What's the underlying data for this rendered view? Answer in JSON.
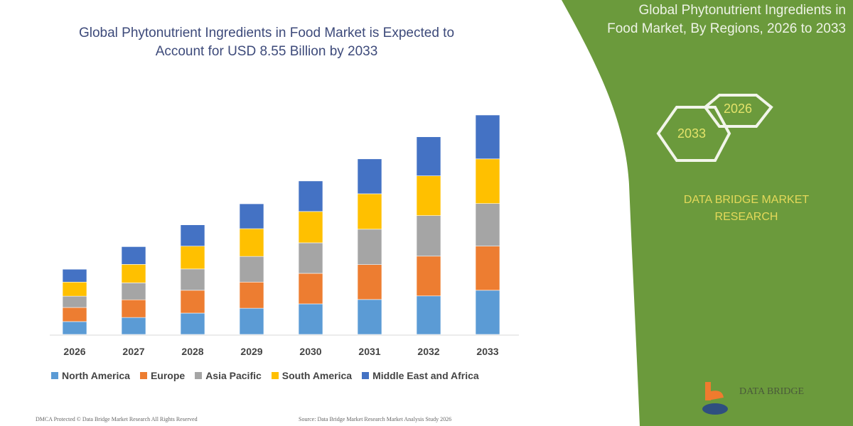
{
  "title": "Global Phytonutrient Ingredients in Food Market is Expected to Account for USD 8.55 Billion by 2033",
  "title_lines": [
    "Global Phytonutrient Ingredients in Food Market is Expected to",
    "Account for USD 8.55 Billion by 2033"
  ],
  "side_panel": {
    "title_lines": [
      "Global Phytonutrient Ingredients in",
      "Food Market, By Regions, 2026 to 2033"
    ],
    "hex_start": "2026",
    "hex_end": "2033",
    "brand_lines": [
      "DATA BRIDGE MARKET",
      "RESEARCH"
    ],
    "color": "#6b9a3c"
  },
  "logo": {
    "text": "DATA BRIDGE"
  },
  "footer": {
    "left": "DMCA Protected © Data Bridge Market Research   All Rights Reserved",
    "right": "Source: Data Bridge Market Research Market Analysis Study 2026"
  },
  "chart_data": {
    "type": "bar",
    "stacked": true,
    "categories": [
      "2026",
      "2027",
      "2028",
      "2029",
      "2030",
      "2031",
      "2032",
      "2033"
    ],
    "series": [
      {
        "name": "North America",
        "color": "#5b9bd5",
        "values": [
          0.5,
          0.66,
          0.83,
          1.02,
          1.19,
          1.36,
          1.5,
          1.72
        ]
      },
      {
        "name": "Europe",
        "color": "#ed7d31",
        "values": [
          0.55,
          0.69,
          0.89,
          1.02,
          1.19,
          1.36,
          1.55,
          1.72
        ]
      },
      {
        "name": "Asia Pacific",
        "color": "#a5a5a5",
        "values": [
          0.44,
          0.66,
          0.83,
          1.0,
          1.19,
          1.38,
          1.58,
          1.66
        ]
      },
      {
        "name": "South America",
        "color": "#ffc000",
        "values": [
          0.55,
          0.72,
          0.89,
          1.08,
          1.22,
          1.38,
          1.55,
          1.74
        ]
      },
      {
        "name": "Middle East and Africa",
        "color": "#4472c4",
        "values": [
          0.5,
          0.69,
          0.83,
          0.97,
          1.19,
          1.36,
          1.52,
          1.71
        ]
      }
    ],
    "ylim": [
      0,
      8.55
    ],
    "unit": "USD Billion",
    "grid": false,
    "legend": "bottom"
  }
}
